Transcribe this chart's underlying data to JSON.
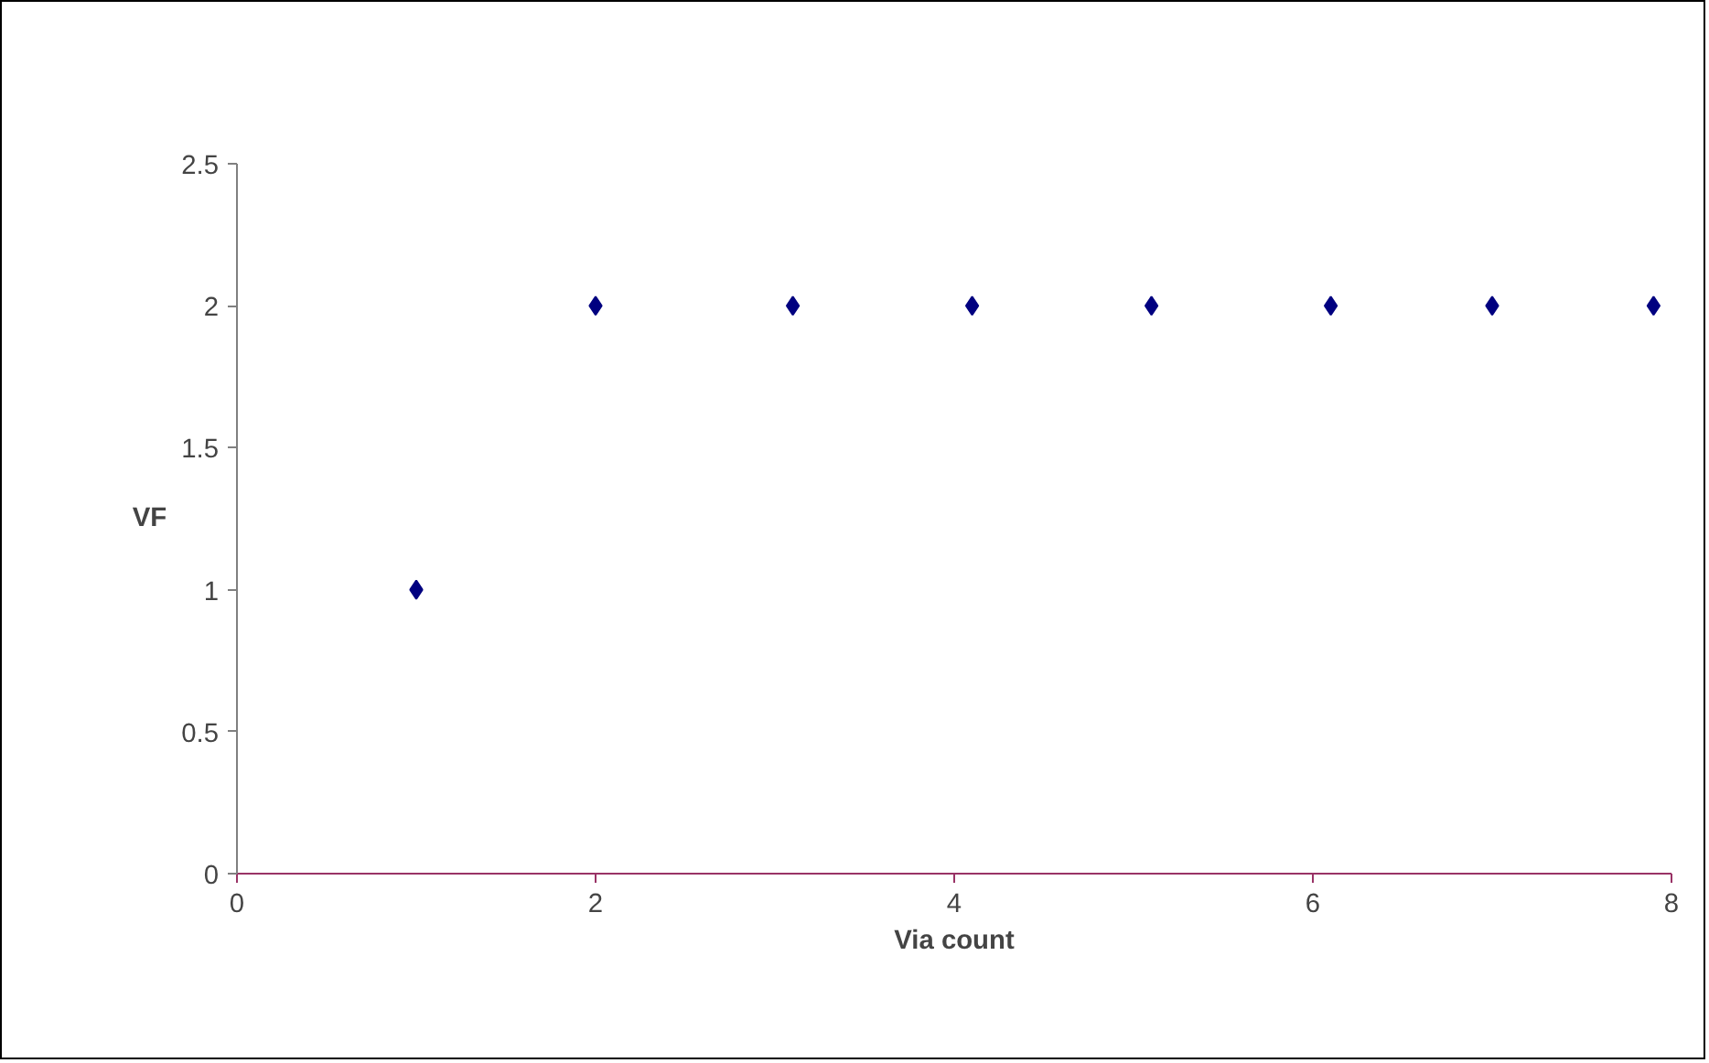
{
  "chart_data": {
    "type": "scatter",
    "xlabel": "Via count",
    "ylabel": "VF",
    "x": [
      1.0,
      2.0,
      3.1,
      4.1,
      5.1,
      6.1,
      7.0,
      7.9
    ],
    "series": [
      {
        "color": "#000080",
        "values": [
          1,
          2,
          2,
          2,
          2,
          2,
          2,
          2
        ]
      }
    ],
    "xlim": [
      0,
      8
    ],
    "xticks": [
      0,
      2,
      4,
      6,
      8
    ],
    "ylim": [
      0,
      2.5
    ],
    "yticks": [
      0,
      0.5,
      1,
      1.5,
      2,
      2.5
    ],
    "grid": false,
    "marker": "diamond"
  }
}
